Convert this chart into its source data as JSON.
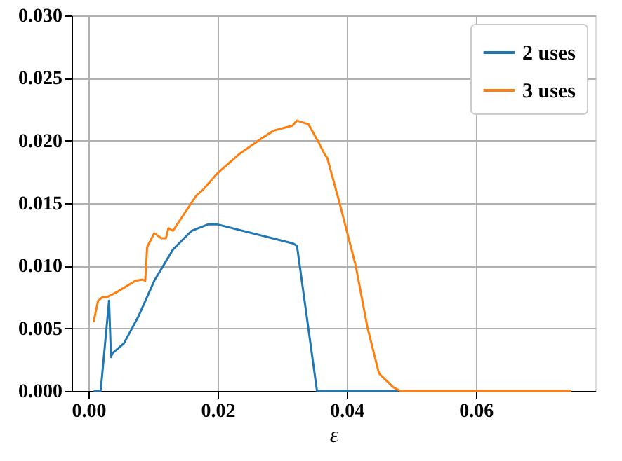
{
  "chart_data": {
    "type": "line",
    "xlabel": "ε",
    "xlim": [
      -0.0026,
      0.0785
    ],
    "xticks": [
      {
        "value": 0,
        "label": "0.00"
      },
      {
        "value": 0.02,
        "label": "0.02"
      },
      {
        "value": 0.04,
        "label": "0.04"
      },
      {
        "value": 0.06,
        "label": "0.06"
      }
    ],
    "ylim": [
      0,
      0.03
    ],
    "yticks": [
      {
        "value": 0,
        "label": "0.000"
      },
      {
        "value": 0.005,
        "label": "0.005"
      },
      {
        "value": 0.01,
        "label": "0.010"
      },
      {
        "value": 0.015,
        "label": "0.015"
      },
      {
        "value": 0.02,
        "label": "0.020"
      },
      {
        "value": 0.025,
        "label": "0.025"
      },
      {
        "value": 0.03,
        "label": "0.030"
      }
    ],
    "grid": true,
    "legend": "top right",
    "marker": "none",
    "line_style": "solid",
    "series": [
      {
        "name": "2 uses",
        "color": "#1f77b4",
        "x": [
          0.0008,
          0.0019,
          0.0032,
          0.0035,
          0.0037,
          0.0055,
          0.0077,
          0.0102,
          0.0131,
          0.016,
          0.0185,
          0.02,
          0.0316,
          0.0323,
          0.0354,
          0.048
        ],
        "values": [
          0,
          0,
          0.0072,
          0.0027,
          0.003,
          0.0038,
          0.0059,
          0.0088,
          0.0113,
          0.0128,
          0.0133,
          0.0133,
          0.0118,
          0.0116,
          0,
          0
        ]
      },
      {
        "name": "3 uses",
        "color": "#ff7f0e",
        "x": [
          0.0008,
          0.0015,
          0.0022,
          0.0029,
          0.0044,
          0.0073,
          0.0084,
          0.0088,
          0.0091,
          0.0102,
          0.0113,
          0.012,
          0.0124,
          0.0131,
          0.0167,
          0.0178,
          0.02,
          0.0233,
          0.0269,
          0.0287,
          0.0316,
          0.0323,
          0.0341,
          0.0355,
          0.0366,
          0.037,
          0.0388,
          0.0399,
          0.0414,
          0.0432,
          0.045,
          0.0472,
          0.0483,
          0.0748
        ],
        "values": [
          0.0055,
          0.0072,
          0.0075,
          0.0075,
          0.0079,
          0.0088,
          0.0089,
          0.0088,
          0.0115,
          0.0126,
          0.0122,
          0.0122,
          0.013,
          0.0128,
          0.0156,
          0.0161,
          0.0174,
          0.0189,
          0.0202,
          0.0208,
          0.0212,
          0.0216,
          0.0213,
          0.02,
          0.0189,
          0.0186,
          0.0152,
          0.013,
          0.01,
          0.0051,
          0.0014,
          0.0003,
          0,
          0
        ]
      }
    ]
  }
}
